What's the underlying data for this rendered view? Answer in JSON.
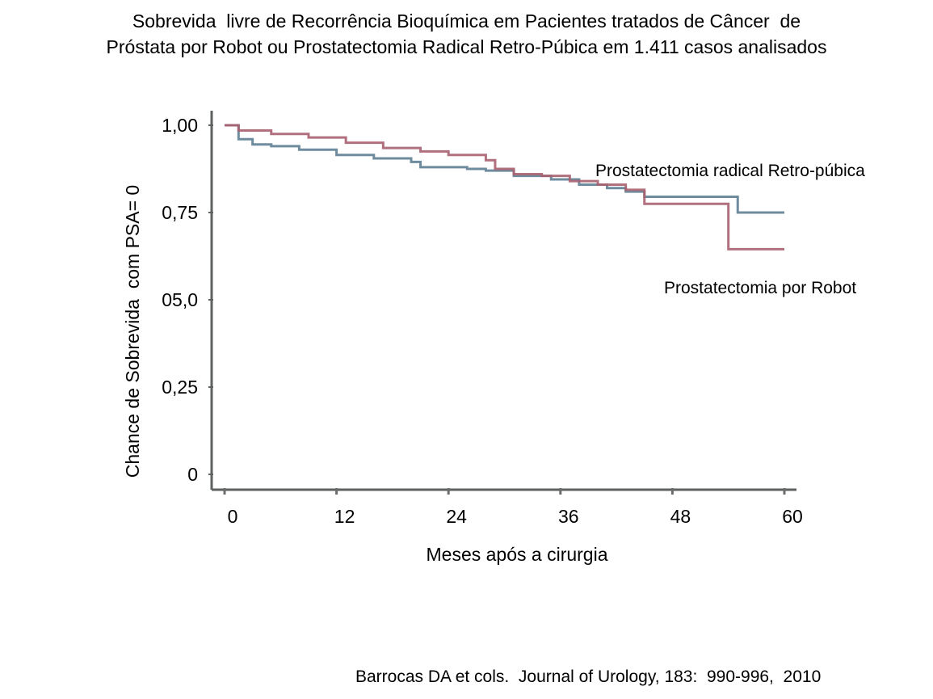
{
  "title_lines": [
    "Sobrevida  livre de Recorrência Bioquímica em Pacientes tratados de Câncer  de",
    "Próstata por Robot ou Prostatectomia Radical Retro-Púbica em 1.411 casos analisados"
  ],
  "footer": "Barrocas DA et cols.  Journal of Urology, 183:  990-996,  2010",
  "chart_data": {
    "type": "line",
    "subtype": "step (Kaplan-Meier)",
    "title": "Sobrevida  livre de Recorrência Bioquímica em Pacientes tratados de Câncer  de Próstata por Robot ou Prostatectomia Radical Retro-Púbica em 1.411 casos analisados",
    "xlabel": "Meses após a cirurgia",
    "ylabel": "Chance de Sobrevida  com PSA= 0",
    "xlim": [
      0,
      60
    ],
    "ylim": [
      0,
      1.0
    ],
    "x_ticks": [
      0,
      12,
      24,
      36,
      48,
      60
    ],
    "x_tick_labels": [
      "0",
      "12",
      "24",
      "36",
      "48",
      "60"
    ],
    "y_ticks": [
      0,
      0.25,
      0.5,
      0.75,
      1.0
    ],
    "y_tick_labels": [
      "0",
      "0,25",
      "05,0",
      "0,75",
      "1,00"
    ],
    "grid": false,
    "legend": "inline annotations (right)",
    "series": [
      {
        "name": "Prostatectomia radical Retro-púbica",
        "color": "#5f7f95",
        "annotation_position": "above-right",
        "x": [
          0,
          1.5,
          3,
          5,
          8,
          12,
          16,
          20,
          21,
          26,
          28,
          31,
          35,
          38,
          41,
          43,
          45,
          55,
          60
        ],
        "y": [
          1.0,
          0.96,
          0.945,
          0.94,
          0.93,
          0.915,
          0.905,
          0.895,
          0.88,
          0.875,
          0.87,
          0.855,
          0.845,
          0.83,
          0.82,
          0.81,
          0.795,
          0.75,
          0.75
        ]
      },
      {
        "name": "Prostatectomia por Robot",
        "color": "#a8606f",
        "annotation_position": "below-right",
        "x": [
          0,
          1.5,
          5,
          9,
          13,
          17,
          21,
          24,
          28,
          29,
          31,
          34,
          37,
          40,
          43,
          45,
          54,
          60
        ],
        "y": [
          1.0,
          0.985,
          0.975,
          0.965,
          0.95,
          0.935,
          0.925,
          0.915,
          0.9,
          0.875,
          0.86,
          0.855,
          0.84,
          0.83,
          0.815,
          0.775,
          0.645,
          0.645
        ]
      }
    ]
  }
}
